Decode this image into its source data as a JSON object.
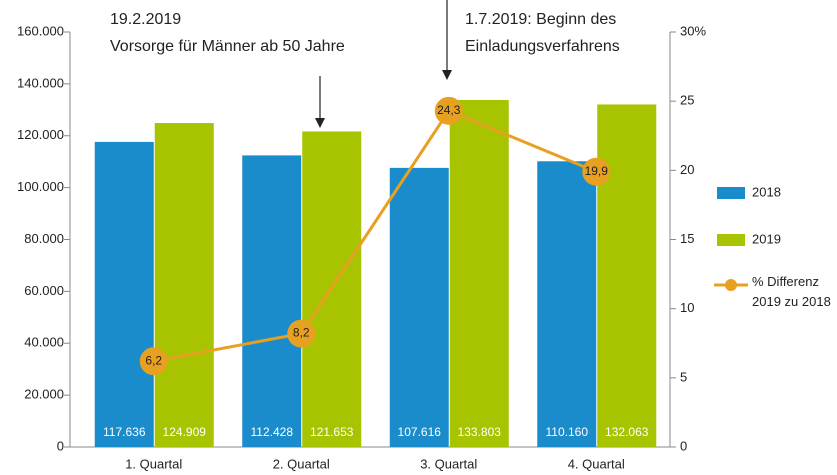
{
  "chart_data": {
    "type": "bar",
    "categories": [
      "1. Quartal",
      "2. Quartal",
      "3. Quartal",
      "4. Quartal"
    ],
    "series": [
      {
        "name": "2018",
        "color": "#1a8ccb",
        "values": [
          117636,
          112428,
          107616,
          110160
        ],
        "value_labels": [
          "117.636",
          "112.428",
          "107.616",
          "110.160"
        ]
      },
      {
        "name": "2019",
        "color": "#a8c400",
        "values": [
          124909,
          121653,
          133803,
          132063
        ],
        "value_labels": [
          "124.909",
          "121.653",
          "133.803",
          "132.063"
        ]
      },
      {
        "name": "% Differenz 2019 zu 2018",
        "type": "line",
        "axis": "y2",
        "color": "#e8a020",
        "values": [
          6.2,
          8.2,
          24.3,
          19.9
        ],
        "value_labels": [
          "6,2",
          "8,2",
          "24,3",
          "19,9"
        ]
      }
    ],
    "ylim": [
      0,
      160000
    ],
    "yticks": [
      0,
      {
        "value": 20000,
        "label": "20.000"
      },
      {
        "value": 40000,
        "label": "40.000"
      },
      {
        "value": 60000,
        "label": "60.000"
      },
      {
        "value": 80000,
        "label": "80.000"
      },
      {
        "value": 100000,
        "label": "100.000"
      },
      {
        "value": 120000,
        "label": "120.000"
      },
      {
        "value": 140000,
        "label": "140.000"
      },
      {
        "value": 160000,
        "label": "160.000"
      }
    ],
    "y2lim": [
      0,
      30
    ],
    "y2ticks": [
      0,
      5,
      10,
      15,
      20,
      25,
      {
        "value": 30,
        "label": "30%"
      }
    ],
    "annotations": [
      "19.2.2019",
      "Vorsorge für Männer ab 50 Jahre",
      "1.7.2019: Beginn des",
      "Einladungsverfahrens"
    ],
    "legend": "right"
  }
}
